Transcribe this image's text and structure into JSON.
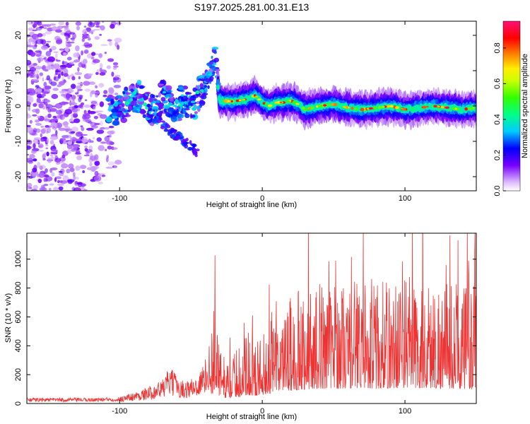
{
  "title": "S197.2025.281.00.31.E13",
  "chart_data": [
    {
      "type": "heatmap",
      "name": "spectrogram",
      "xlabel": "Height of straight line (km)",
      "ylabel": "Frequency (Hz)",
      "xlim": [
        -165,
        150
      ],
      "ylim": [
        -24,
        24
      ],
      "xticks": [
        -100,
        0,
        100
      ],
      "yticks": [
        -20,
        -10,
        0,
        10,
        20
      ],
      "ridge": [
        [
          -105,
          -2
        ],
        [
          -95,
          1
        ],
        [
          -90,
          3
        ],
        [
          -85,
          2
        ],
        [
          -80,
          0
        ],
        [
          -75,
          -2
        ],
        [
          -70,
          3
        ],
        [
          -65,
          1
        ],
        [
          -60,
          0
        ],
        [
          -55,
          2
        ],
        [
          -50,
          -1
        ],
        [
          -45,
          3
        ],
        [
          -40,
          6
        ],
        [
          -36,
          10
        ],
        [
          -33,
          14
        ],
        [
          -30,
          1.5
        ],
        [
          -20,
          1.3
        ],
        [
          -10,
          2
        ],
        [
          -5,
          3
        ],
        [
          0,
          1
        ],
        [
          5,
          0
        ],
        [
          10,
          1
        ],
        [
          15,
          1
        ],
        [
          20,
          1.5
        ],
        [
          25,
          0.5
        ],
        [
          30,
          -1
        ],
        [
          40,
          0
        ],
        [
          50,
          0.5
        ],
        [
          60,
          -0.5
        ],
        [
          70,
          -1
        ],
        [
          80,
          -0.5
        ],
        [
          90,
          0
        ],
        [
          100,
          -1
        ],
        [
          110,
          -0.5
        ],
        [
          120,
          0
        ],
        [
          130,
          -0.5
        ],
        [
          140,
          -1
        ],
        [
          150,
          -0.5
        ]
      ],
      "colorbar": {
        "label": "Normalized spectral amplitude",
        "range": [
          0.0,
          0.95
        ],
        "ticks": [
          0.0,
          0.2,
          0.4,
          0.6,
          0.8
        ],
        "tick_labels": [
          "0.0",
          "0.2",
          "0.4",
          "0.6",
          "0.8"
        ]
      }
    },
    {
      "type": "line",
      "name": "snr",
      "xlabel": "Height of straight line (km)",
      "ylabel": "SNR (10 * v/v)",
      "xlim": [
        -165,
        150
      ],
      "ylim": [
        0,
        1180
      ],
      "xticks": [
        -100,
        0,
        100
      ],
      "yticks": [
        0,
        200,
        400,
        600,
        800,
        1000
      ],
      "color": "#ee3333",
      "envelope": [
        [
          -165,
          30
        ],
        [
          -120,
          30
        ],
        [
          -100,
          35
        ],
        [
          -90,
          55
        ],
        [
          -80,
          80
        ],
        [
          -70,
          120
        ],
        [
          -65,
          180
        ],
        [
          -55,
          110
        ],
        [
          -45,
          140
        ],
        [
          -38,
          250
        ],
        [
          -35,
          450
        ],
        [
          -32,
          720
        ],
        [
          -30,
          300
        ],
        [
          -25,
          250
        ],
        [
          -15,
          320
        ],
        [
          -10,
          400
        ],
        [
          -5,
          350
        ],
        [
          0,
          400
        ],
        [
          10,
          500
        ],
        [
          20,
          580
        ],
        [
          30,
          650
        ],
        [
          40,
          680
        ],
        [
          50,
          700
        ],
        [
          60,
          680
        ],
        [
          70,
          730
        ],
        [
          80,
          680
        ],
        [
          90,
          700
        ],
        [
          100,
          720
        ],
        [
          110,
          680
        ],
        [
          120,
          700
        ],
        [
          130,
          690
        ],
        [
          140,
          680
        ],
        [
          150,
          650
        ]
      ]
    }
  ]
}
